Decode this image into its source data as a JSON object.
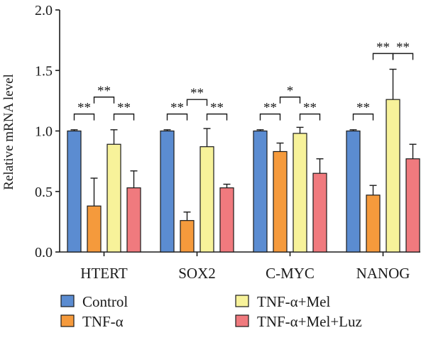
{
  "chart_data": {
    "type": "bar",
    "ylabel": "Relative mRNA level",
    "xlabel": "",
    "ylim": [
      0,
      2.0
    ],
    "yticks": [
      "0.0",
      "0.5",
      "1.0",
      "1.5",
      "2.0"
    ],
    "categories": [
      "HTERT",
      "SOX2",
      "C-MYC",
      "NANOG"
    ],
    "series": [
      {
        "name": "Control",
        "color": "#5b8cd1",
        "values": [
          1.0,
          1.0,
          1.0,
          1.0
        ],
        "errors": [
          0.01,
          0.01,
          0.01,
          0.01
        ]
      },
      {
        "name": "TNF-α",
        "color": "#f59a3c",
        "values": [
          0.38,
          0.26,
          0.83,
          0.47
        ],
        "errors": [
          0.23,
          0.07,
          0.07,
          0.08
        ]
      },
      {
        "name": "TNF-α+Mel",
        "color": "#f7f29a",
        "values": [
          0.89,
          0.87,
          0.98,
          1.26
        ],
        "errors": [
          0.12,
          0.15,
          0.05,
          0.25
        ]
      },
      {
        "name": "TNF-α+Mel+Luz",
        "color": "#f07a7e",
        "values": [
          0.53,
          0.53,
          0.65,
          0.77
        ],
        "errors": [
          0.14,
          0.03,
          0.12,
          0.12
        ]
      }
    ],
    "significance": [
      {
        "category": 0,
        "from": 0,
        "to": 1,
        "label": "**",
        "level": 1.14
      },
      {
        "category": 0,
        "from": 1,
        "to": 2,
        "label": "**",
        "level": 1.28
      },
      {
        "category": 0,
        "from": 2,
        "to": 3,
        "label": "**",
        "level": 1.14
      },
      {
        "category": 1,
        "from": 0,
        "to": 1,
        "label": "**",
        "level": 1.14
      },
      {
        "category": 1,
        "from": 1,
        "to": 2,
        "label": "**",
        "level": 1.26
      },
      {
        "category": 1,
        "from": 2,
        "to": 3,
        "label": "**",
        "level": 1.14
      },
      {
        "category": 2,
        "from": 0,
        "to": 1,
        "label": "**",
        "level": 1.14
      },
      {
        "category": 2,
        "from": 1,
        "to": 2,
        "label": "*",
        "level": 1.28
      },
      {
        "category": 2,
        "from": 2,
        "to": 3,
        "label": "**",
        "level": 1.14
      },
      {
        "category": 3,
        "from": 0,
        "to": 1,
        "label": "**",
        "level": 1.14
      },
      {
        "category": 3,
        "from": 2,
        "to": 1,
        "label": "**",
        "level": 1.64
      },
      {
        "category": 3,
        "from": 2,
        "to": 3,
        "label": "**",
        "level": 1.64
      }
    ],
    "legend": {
      "placement": "bottom",
      "entries": [
        "Control",
        "TNF-α",
        "TNF-α+Mel",
        "TNF-α+Mel+Luz"
      ]
    },
    "grid": false
  }
}
